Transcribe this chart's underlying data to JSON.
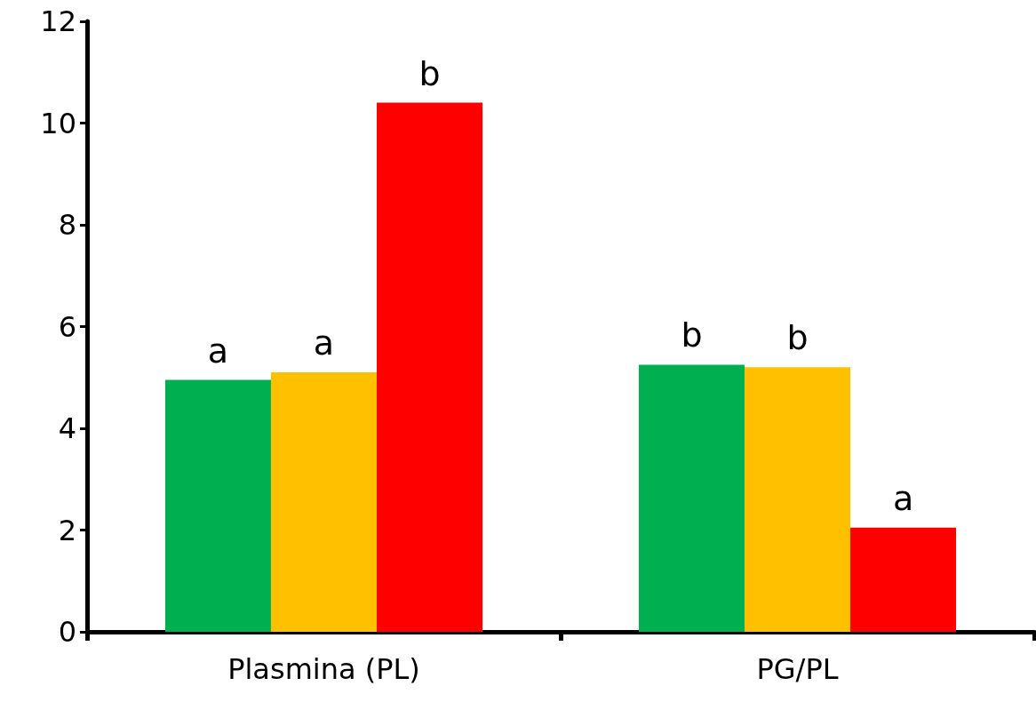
{
  "chart_data": {
    "type": "bar",
    "categories": [
      "Plasmina (PL)",
      "PG/PL"
    ],
    "series": [
      {
        "color": "#00b050",
        "values": [
          4.95,
          5.25
        ],
        "value_labels": [
          "a",
          "b"
        ]
      },
      {
        "color": "#ffc000",
        "values": [
          5.1,
          5.2
        ],
        "value_labels": [
          "a",
          "b"
        ]
      },
      {
        "color": "#ff0000",
        "values": [
          10.4,
          2.05
        ],
        "value_labels": [
          "b",
          "a"
        ]
      }
    ],
    "ylim": [
      0,
      12
    ],
    "yticks": [
      0,
      2,
      4,
      6,
      8,
      10,
      12
    ],
    "grid": false
  }
}
